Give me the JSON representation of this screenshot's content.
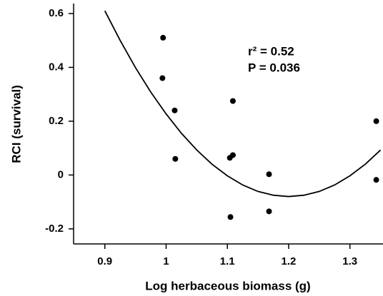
{
  "chart_data": {
    "type": "scatter",
    "xlabel": "Log herbaceous biomass (g)",
    "ylabel": "RCI (survival)",
    "annotations": [
      "r² = 0.52",
      "P = 0.036"
    ],
    "x": [
      0.995,
      0.994,
      1.014,
      1.015,
      1.109,
      1.104,
      1.109,
      1.105,
      1.168,
      1.168,
      1.343,
      1.343
    ],
    "values": [
      0.51,
      0.36,
      0.24,
      0.06,
      0.275,
      0.064,
      0.074,
      -0.156,
      0.003,
      -0.135,
      0.2,
      -0.018
    ],
    "color": "#000000",
    "fit": {
      "x": [
        0.9,
        0.925,
        0.95,
        0.975,
        1.0,
        1.025,
        1.05,
        1.075,
        1.1,
        1.125,
        1.15,
        1.175,
        1.2,
        1.225,
        1.25,
        1.275,
        1.3,
        1.325,
        1.35
      ],
      "y": [
        0.61,
        0.5,
        0.399,
        0.308,
        0.227,
        0.155,
        0.093,
        0.04,
        -0.003,
        -0.037,
        -0.061,
        -0.075,
        -0.08,
        -0.075,
        -0.061,
        -0.037,
        -0.003,
        0.04,
        0.093
      ]
    },
    "xlim": [
      0.849,
      1.354
    ],
    "ylim": [
      -0.256,
      0.637
    ],
    "xticks": [
      0.9,
      1,
      1.1,
      1.2,
      1.3
    ],
    "yticks": [
      -0.2,
      0,
      0.2,
      0.4,
      0.6
    ],
    "grid": false
  }
}
